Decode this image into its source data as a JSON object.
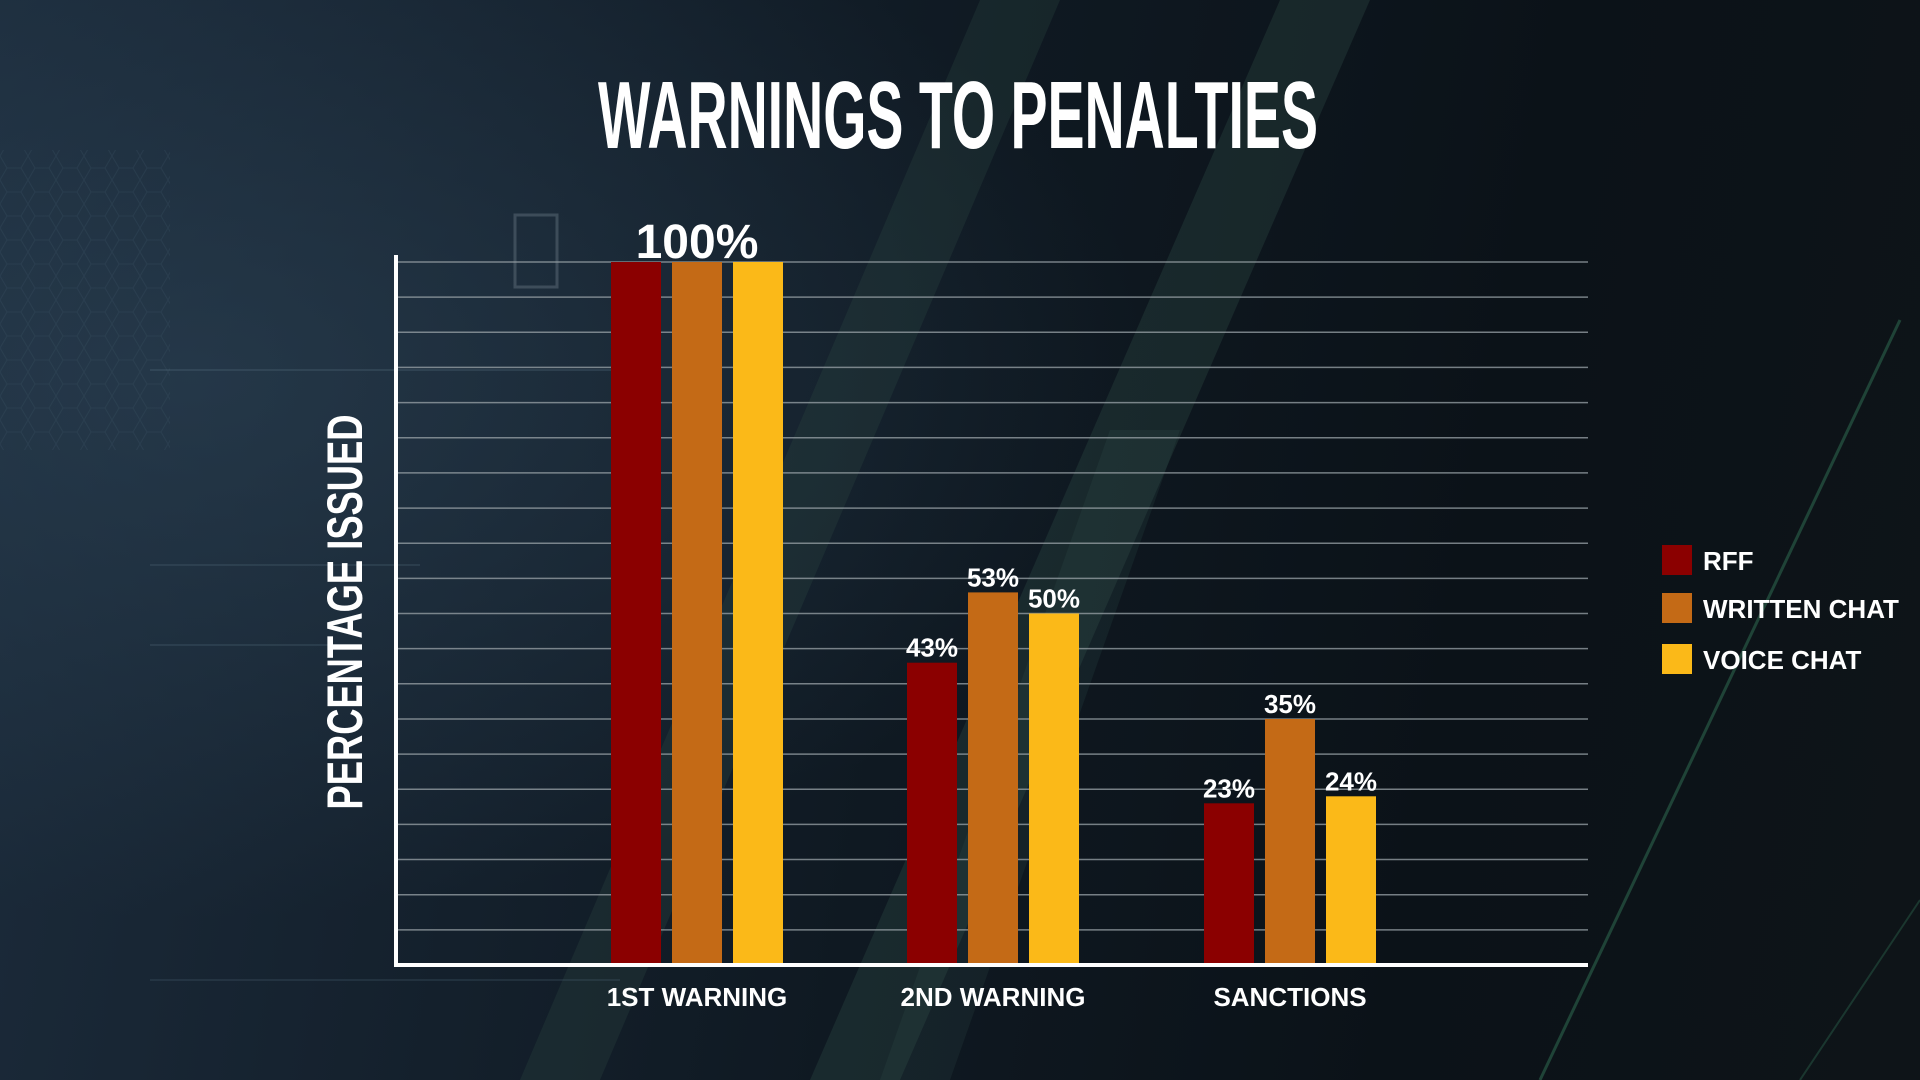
{
  "chart_data": {
    "type": "bar",
    "title": "WARNINGS TO PENALTIES",
    "xlabel": "",
    "ylabel": "PERCENTAGE  ISSUED",
    "categories": [
      "1ST WARNING",
      "2ND WARNING",
      "SANCTIONS"
    ],
    "series": [
      {
        "name": "RFF",
        "color": "#8b0000",
        "values": [
          100,
          43,
          23
        ],
        "labels": [
          "",
          "43%",
          "23%"
        ]
      },
      {
        "name": "WRITTEN CHAT",
        "color": "#c46a16",
        "values": [
          100,
          53,
          35
        ],
        "labels": [
          "",
          "53%",
          "35%"
        ]
      },
      {
        "name": "VOICE CHAT",
        "color": "#fbb918",
        "values": [
          100,
          50,
          24
        ],
        "labels": [
          "",
          "50%",
          "24%"
        ]
      }
    ],
    "group_labels": [
      "100%",
      "",
      ""
    ],
    "ylim": [
      0,
      100
    ],
    "grid": true,
    "y_tick_labels_shown": false,
    "legend_position": "right"
  }
}
